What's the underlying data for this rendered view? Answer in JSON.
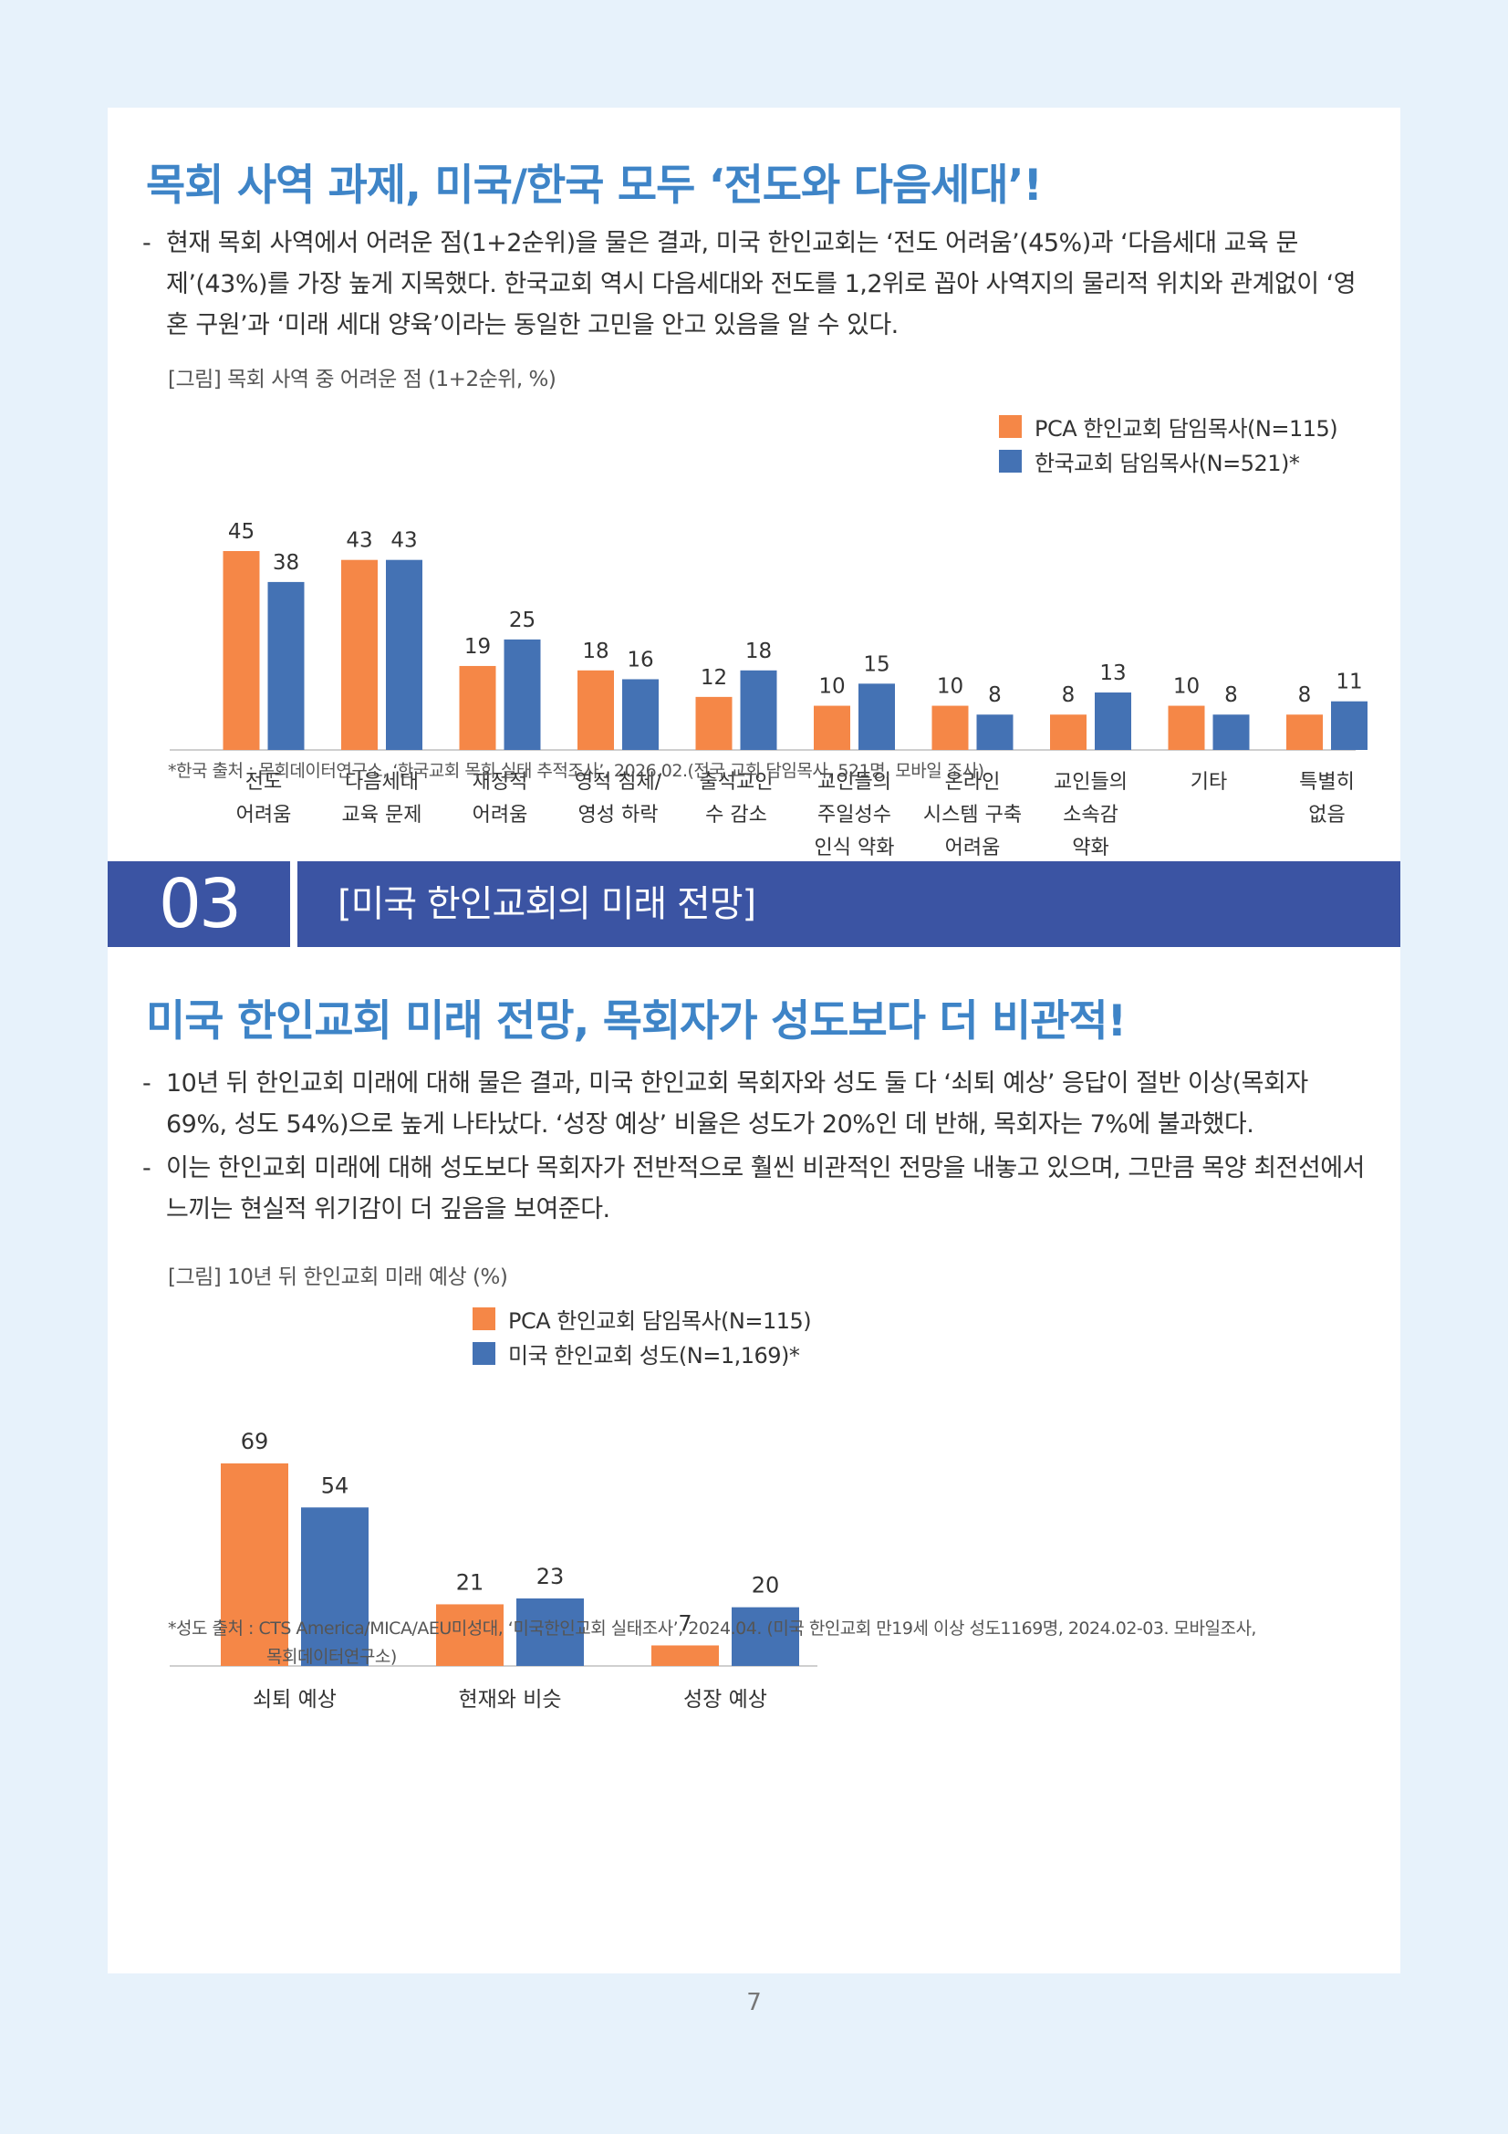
{
  "section1": {
    "title": "목회 사역 과제, 미국/한국 모두 ‘전도와 다음세대’!",
    "bullet1": "현재 목회 사역에서 어려운 점(1+2순위)을 물은 결과, 미국 한인교회는 ‘전도 어려움’(45%)과 ‘다음세대 교육 문제’(43%)를 가장 높게 지목했다. 한국교회 역시 다음세대와 전도를 1,2위로 꼽아 사역지의 물리적 위치와 관계없이 ‘영혼 구원’과 ‘미래 세대 양육’이라는 동일한 고민을 안고 있음을 알 수 있다.",
    "figure_caption": "[그림] 목회 사역 중 어려운 점 (1+2순위, %)",
    "source": "*한국 출처 : 목회데이터연구소, ‘한국교회 목회 실태 추적조사’, 2026.02.(전국 교회 담임목사, 521명, 모바일 조사)"
  },
  "section_bar": {
    "number": "03",
    "title": "[미국 한인교회의 미래 전망]"
  },
  "section2": {
    "title": "미국 한인교회 미래 전망, 목회자가 성도보다 더 비관적!",
    "bullet1": "10년 뒤 한인교회 미래에 대해 물은 결과, 미국 한인교회 목회자와 성도 둘 다 ‘쇠퇴 예상’ 응답이 절반 이상(목회자 69%, 성도 54%)으로 높게 나타났다. ‘성장 예상’ 비율은 성도가 20%인 데 반해, 목회자는 7%에 불과했다.",
    "bullet2": "이는 한인교회 미래에 대해 성도보다 목회자가 전반적으로 훨씬 비관적인 전망을 내놓고 있으며, 그만큼 목양 최전선에서 느끼는 현실적 위기감이 더 깊음을 보여준다.",
    "figure_caption": "[그림] 10년 뒤 한인교회 미래 예상 (%)",
    "source_line1": "*성도 출처 : CTS America/MICA/AEU미성대, ‘미국한인교회 실태조사’, 2024.04. (미국 한인교회 만19세 이상 성도1169명, 2024.02-03. 모바일조사,",
    "source_line2": "목회데이터연구소)"
  },
  "page_number": "7",
  "chart_data": [
    {
      "type": "bar",
      "categories": [
        [
          "전도",
          "어려움"
        ],
        [
          "다음세대",
          "교육 문제"
        ],
        [
          "재정적",
          "어려움"
        ],
        [
          "영적 침체/",
          "영성 하락"
        ],
        [
          "출석교인",
          "수 감소"
        ],
        [
          "교인들의",
          "주일성수",
          "인식 약화"
        ],
        [
          "온라인",
          "시스템 구축",
          "어려움"
        ],
        [
          "교인들의",
          "소속감",
          "약화"
        ],
        [
          "기타"
        ],
        [
          "특별히",
          "없음"
        ]
      ],
      "series": [
        {
          "name": "PCA 한인교회 담임목사(N=115)",
          "color": "#f58747",
          "values": [
            45,
            43,
            19,
            18,
            12,
            10,
            10,
            8,
            10,
            8
          ]
        },
        {
          "name": "한국교회 담임목사(N=521)*",
          "color": "#4472b4",
          "values": [
            38,
            43,
            25,
            16,
            18,
            15,
            8,
            13,
            8,
            11
          ]
        }
      ],
      "legend": "top-right",
      "ylim": [
        0,
        45
      ]
    },
    {
      "type": "bar",
      "categories": [
        [
          "쇠퇴 예상"
        ],
        [
          "현재와 비슷"
        ],
        [
          "성장 예상"
        ]
      ],
      "series": [
        {
          "name": "PCA 한인교회 담임목사(N=115)",
          "color": "#f58747",
          "values": [
            69,
            21,
            7
          ]
        },
        {
          "name": "미국 한인교회 성도(N=1,169)*",
          "color": "#4472b4",
          "values": [
            54,
            23,
            20
          ]
        }
      ],
      "legend": "top-right",
      "ylim": [
        0,
        69
      ]
    }
  ]
}
